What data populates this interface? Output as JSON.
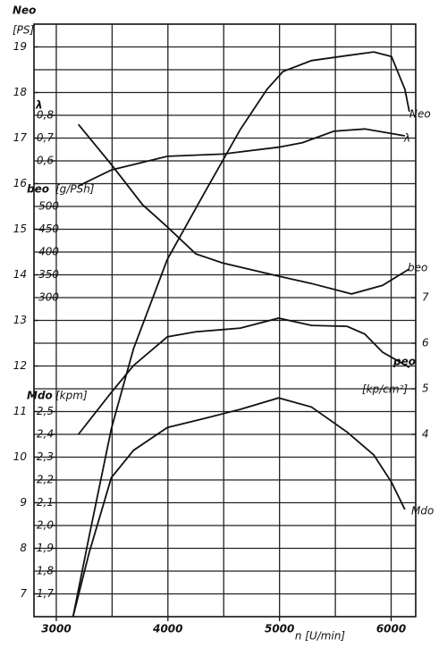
{
  "chart_data": {
    "type": "line",
    "x_label": "n [U/min]",
    "xlim": [
      2800,
      6220
    ],
    "xticks": [
      3000,
      4000,
      5000,
      6000
    ],
    "xgrid": [
      3000,
      3500,
      4000,
      4500,
      5000,
      5500,
      6000
    ],
    "ygrid": [
      7,
      7.5,
      8,
      8.5,
      9,
      9.5,
      10,
      10.5,
      11,
      11.5,
      12,
      12.5,
      13,
      13.5,
      14,
      14.5,
      15,
      15.5,
      16,
      16.5,
      17,
      17.5,
      18,
      18.5,
      19
    ],
    "grid": true,
    "series": [
      {
        "name": "Neo",
        "axis_label": "[PS]",
        "color": "#111111",
        "ylim": [
          6.5,
          19.5
        ],
        "yticks": [
          7,
          8,
          9,
          10,
          11,
          12,
          13,
          14,
          15,
          16,
          17,
          18,
          19
        ],
        "x": [
          3150,
          3294,
          3493,
          3692,
          3995,
          4330,
          4649,
          4888,
          5031,
          5286,
          5605,
          5844,
          6003,
          6123,
          6163
        ],
        "values": [
          6.5,
          8.26,
          10.62,
          12.38,
          14.34,
          15.81,
          17.19,
          18.07,
          18.46,
          18.7,
          18.81,
          18.89,
          18.79,
          18.07,
          17.58
        ]
      },
      {
        "name": "λ",
        "color": "#111111",
        "ylim": [
          -1.4,
          1.2
        ],
        "yticks": [
          {
            "value": 0.6,
            "label": "0,6"
          },
          {
            "value": 0.7,
            "label": "0,7"
          },
          {
            "value": 0.8,
            "label": "0,8"
          }
        ],
        "x": [
          3198,
          3493,
          3995,
          4490,
          4992,
          5206,
          5485,
          5764,
          6123
        ],
        "values": [
          0.49,
          0.56,
          0.62,
          0.63,
          0.66,
          0.68,
          0.73,
          0.74,
          0.71
        ]
      },
      {
        "name": "beo",
        "axis_label": "[g/PSh]",
        "color": "#111111",
        "ylim": [
          -400,
          900
        ],
        "yticks": [
          300,
          350,
          400,
          450,
          500
        ],
        "x": [
          3198,
          3493,
          3772,
          3995,
          4250,
          4490,
          4992,
          5286,
          5645,
          5924,
          6163
        ],
        "values": [
          680,
          592,
          504,
          455,
          396,
          376,
          347,
          331,
          308,
          327,
          363
        ]
      },
      {
        "name": "peo",
        "axis_label": "[kp/cm²]",
        "color": "#111111",
        "ylim": [
          0,
          13
        ],
        "yticks": [
          4,
          5,
          6,
          7
        ],
        "x": [
          3198,
          3493,
          3692,
          3995,
          4250,
          4649,
          4992,
          5286,
          5605,
          5764,
          5924,
          6163
        ],
        "values": [
          4.0,
          4.92,
          5.51,
          6.14,
          6.25,
          6.33,
          6.55,
          6.39,
          6.37,
          6.2,
          5.8,
          5.47
        ]
      },
      {
        "name": "Mdo",
        "axis_label": "[kpm]",
        "color": "#111111",
        "ylim": [
          1.6,
          4.2
        ],
        "yticks": [
          {
            "value": 1.7,
            "label": "1,7"
          },
          {
            "value": 1.8,
            "label": "1,8"
          },
          {
            "value": 1.9,
            "label": "1,9"
          },
          {
            "value": 2.0,
            "label": "2,0"
          },
          {
            "value": 2.1,
            "label": "2,1"
          },
          {
            "value": 2.2,
            "label": "2,2"
          },
          {
            "value": 2.3,
            "label": "2,3"
          },
          {
            "value": 2.4,
            "label": "2,4"
          },
          {
            "value": 2.5,
            "label": "2,5"
          }
        ],
        "x": [
          3150,
          3294,
          3493,
          3692,
          3995,
          4330,
          4649,
          4992,
          5286,
          5605,
          5844,
          6003,
          6123
        ],
        "values": [
          1.6,
          1.88,
          2.21,
          2.33,
          2.43,
          2.47,
          2.51,
          2.56,
          2.52,
          2.41,
          2.31,
          2.19,
          2.07
        ]
      }
    ]
  }
}
